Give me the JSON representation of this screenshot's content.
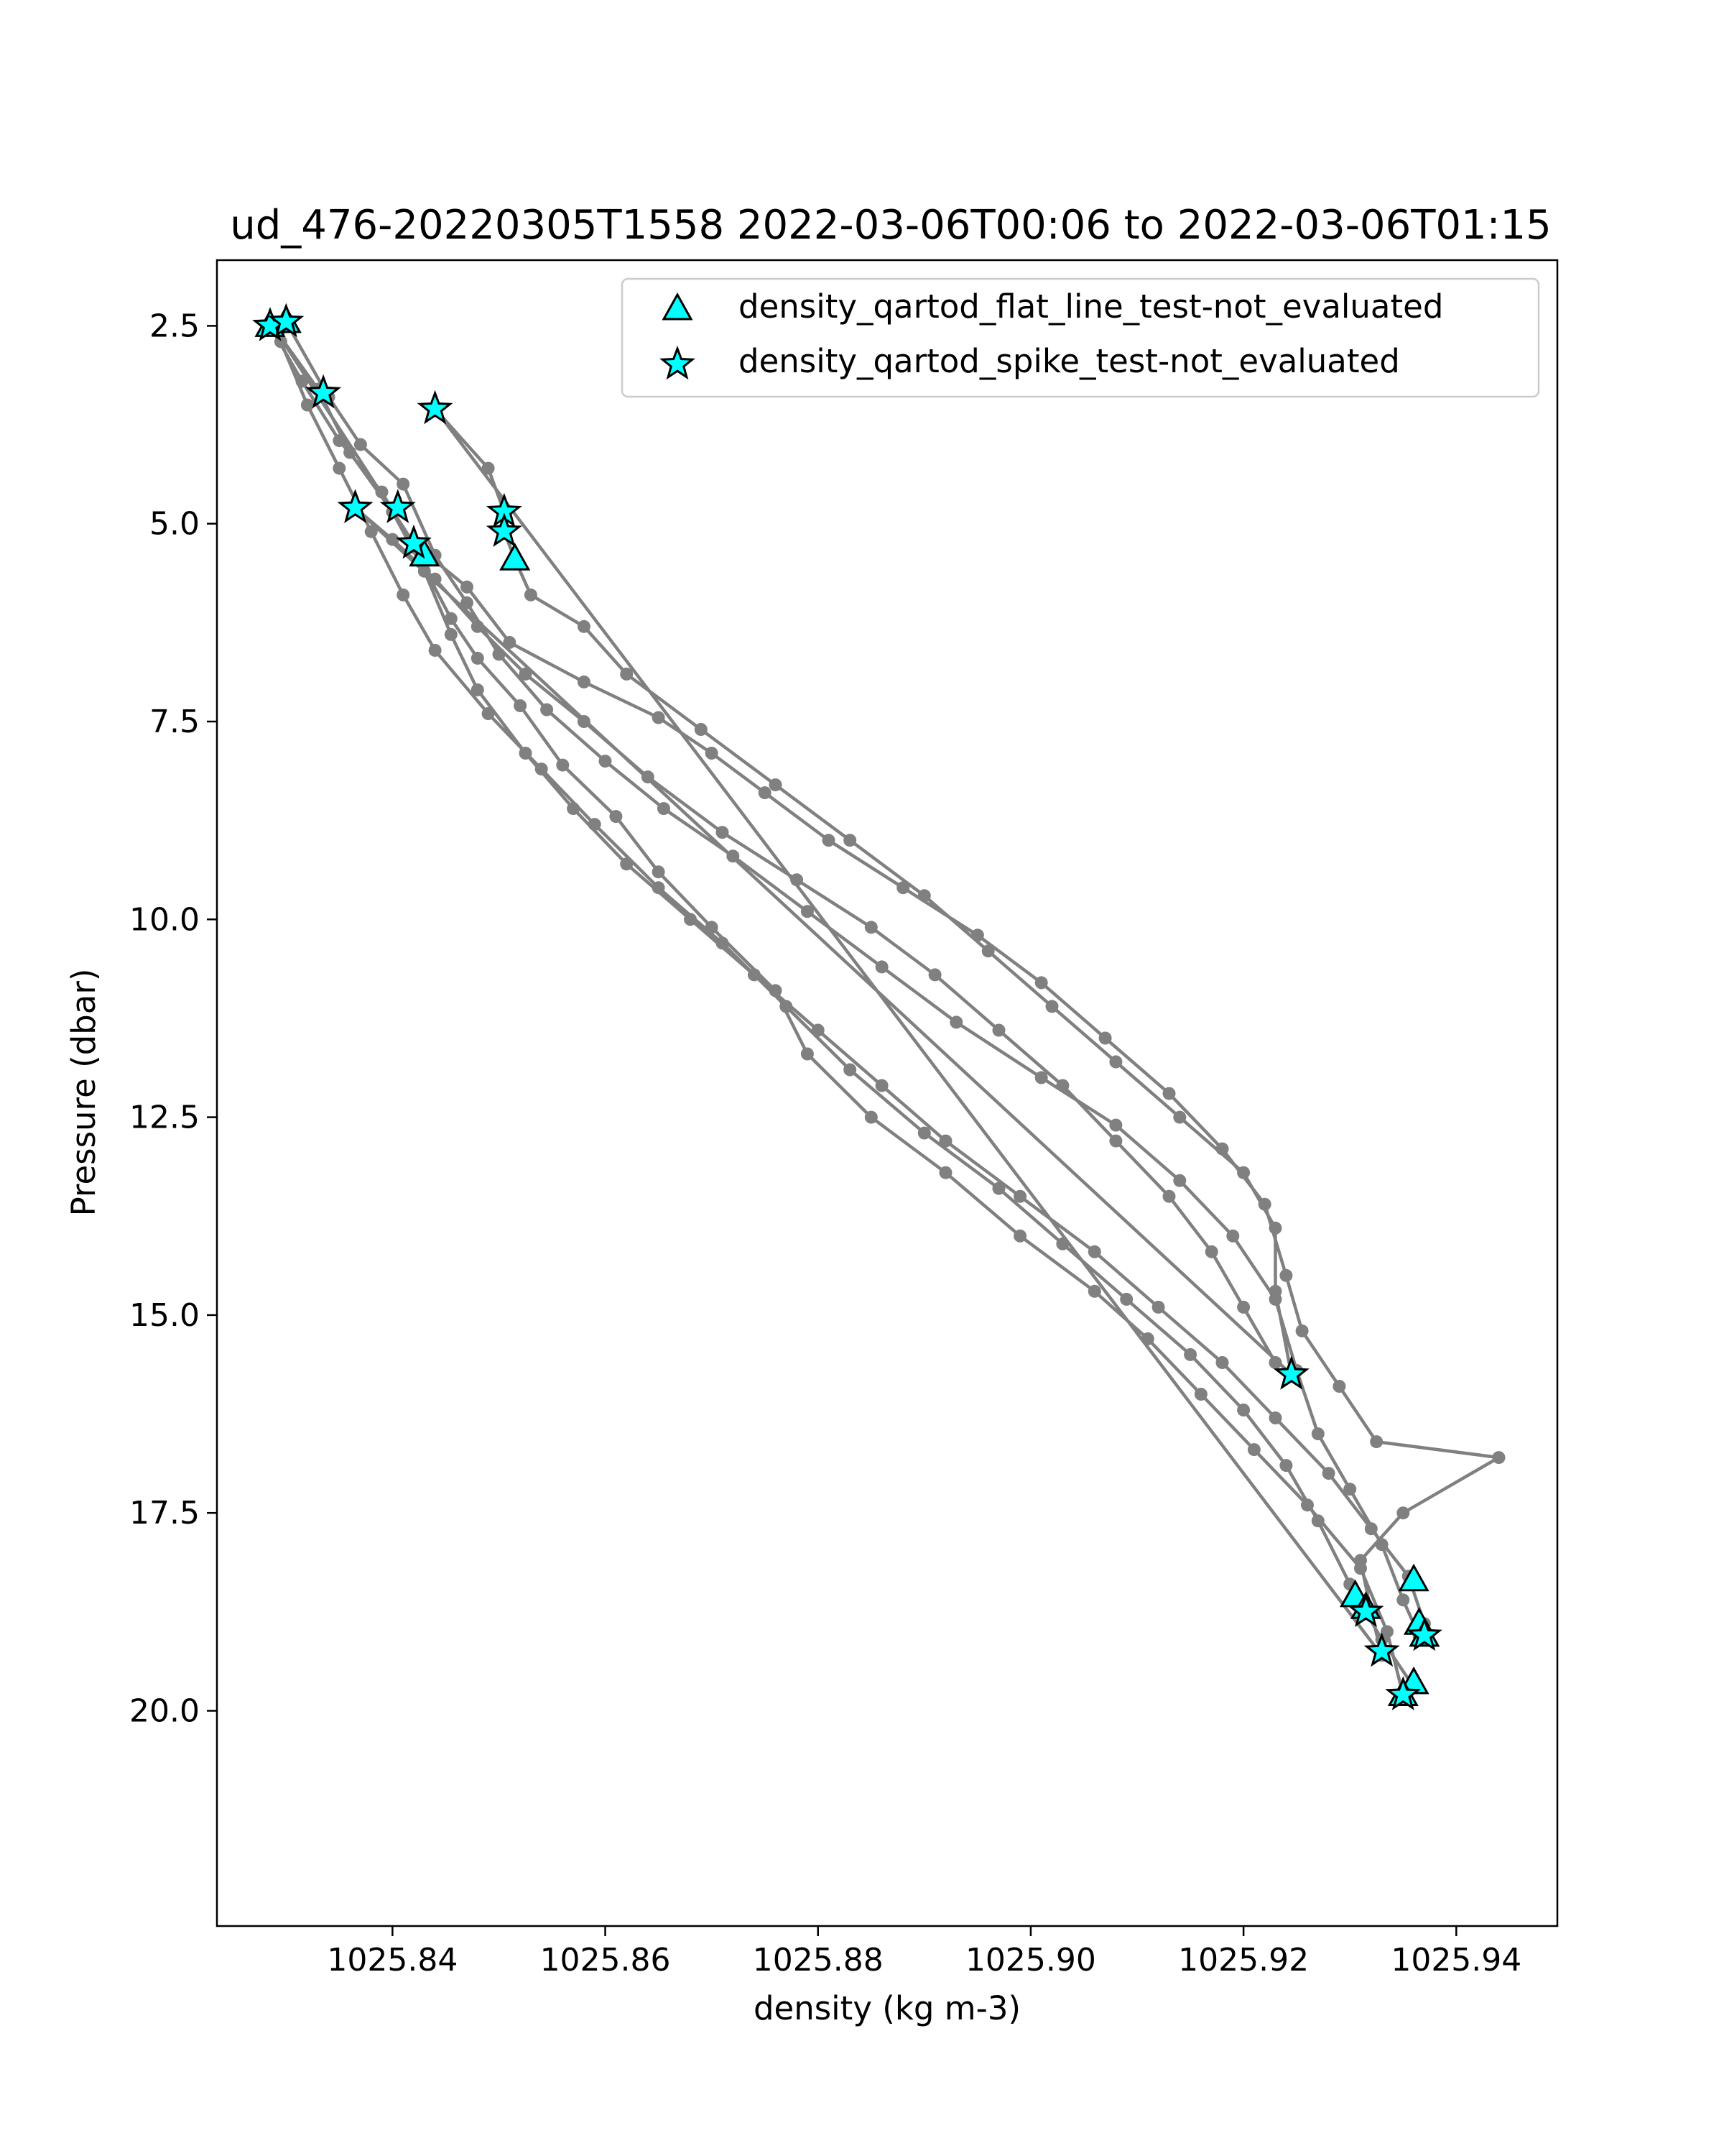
{
  "chart_data": {
    "type": "scatter",
    "title": "ud_476-20220305T1558 2022-03-06T00:06 to 2022-03-06T01:15",
    "xlabel": "density (kg m-3)",
    "ylabel": "Pressure (dbar)",
    "xlim": [
      1025.8235,
      1025.9495
    ],
    "ylim": [
      22.72,
      1.67
    ],
    "y_inverted": true,
    "x_ticks": [
      1025.84,
      1025.86,
      1025.88,
      1025.9,
      1025.92,
      1025.94
    ],
    "x_tick_labels": [
      "1025.84",
      "1025.86",
      "1025.88",
      "1025.90",
      "1025.92",
      "1025.94"
    ],
    "y_ticks": [
      2.5,
      5.0,
      7.5,
      10.0,
      12.5,
      15.0,
      17.5,
      20.0
    ],
    "y_tick_labels": [
      "2.5",
      "5.0",
      "7.5",
      "10.0",
      "12.5",
      "15.0",
      "17.5",
      "20.0"
    ],
    "grid": false,
    "legend_position": "top-right",
    "profile_series": {
      "color": "#808080",
      "points": [
        [
          1025.8285,
          2.5
        ],
        [
          1025.8315,
          3.2
        ],
        [
          1025.835,
          3.95
        ],
        [
          1025.839,
          4.6
        ],
        [
          1025.842,
          5.3
        ],
        [
          1025.8455,
          6.2
        ],
        [
          1025.848,
          6.7
        ],
        [
          1025.852,
          7.3
        ],
        [
          1025.856,
          8.05
        ],
        [
          1025.861,
          8.7
        ],
        [
          1025.865,
          9.4
        ],
        [
          1025.87,
          10.1
        ],
        [
          1025.876,
          10.9
        ],
        [
          1025.879,
          11.7
        ],
        [
          1025.885,
          12.5
        ],
        [
          1025.892,
          13.2
        ],
        [
          1025.899,
          14.0
        ],
        [
          1025.906,
          14.7
        ],
        [
          1025.911,
          15.3
        ],
        [
          1025.916,
          16.0
        ],
        [
          1025.921,
          16.7
        ],
        [
          1025.926,
          17.4
        ],
        [
          1025.931,
          18.2
        ],
        [
          1025.9335,
          19.0
        ],
        [
          1025.935,
          19.8
        ],
        [
          1025.936,
          19.7
        ],
        [
          1025.933,
          19.1
        ],
        [
          1025.93,
          18.4
        ],
        [
          1025.927,
          17.6
        ],
        [
          1025.924,
          16.9
        ],
        [
          1025.92,
          16.2
        ],
        [
          1025.915,
          15.5
        ],
        [
          1025.909,
          14.8
        ],
        [
          1025.903,
          14.1
        ],
        [
          1025.897,
          13.4
        ],
        [
          1025.89,
          12.7
        ],
        [
          1025.883,
          11.9
        ],
        [
          1025.877,
          11.1
        ],
        [
          1025.871,
          10.3
        ],
        [
          1025.865,
          9.6
        ],
        [
          1025.859,
          8.8
        ],
        [
          1025.854,
          8.1
        ],
        [
          1025.849,
          7.4
        ],
        [
          1025.844,
          6.6
        ],
        [
          1025.841,
          5.9
        ],
        [
          1025.838,
          5.1
        ],
        [
          1025.835,
          4.3
        ],
        [
          1025.832,
          3.5
        ],
        [
          1025.8295,
          2.7
        ],
        [
          1025.83,
          2.45
        ],
        [
          1025.834,
          3.4
        ],
        [
          1025.837,
          4.0
        ],
        [
          1025.841,
          4.5
        ],
        [
          1025.844,
          5.4
        ],
        [
          1025.847,
          6.0
        ],
        [
          1025.85,
          6.65
        ],
        [
          1025.8545,
          7.35
        ],
        [
          1025.86,
          8.0
        ],
        [
          1025.8655,
          8.6
        ],
        [
          1025.872,
          9.2
        ],
        [
          1025.879,
          9.9
        ],
        [
          1025.886,
          10.6
        ],
        [
          1025.893,
          11.3
        ],
        [
          1025.901,
          12.0
        ],
        [
          1025.908,
          12.6
        ],
        [
          1025.914,
          13.3
        ],
        [
          1025.919,
          14.0
        ],
        [
          1025.923,
          14.8
        ],
        [
          1025.925,
          15.7
        ],
        [
          1025.927,
          16.5
        ],
        [
          1025.93,
          17.2
        ],
        [
          1025.933,
          17.9
        ],
        [
          1025.935,
          18.6
        ],
        [
          1025.9365,
          19.05
        ],
        [
          1025.937,
          18.9
        ],
        [
          1025.9355,
          18.3
        ],
        [
          1025.932,
          17.7
        ],
        [
          1025.928,
          17.0
        ],
        [
          1025.923,
          16.3
        ],
        [
          1025.918,
          15.6
        ],
        [
          1025.912,
          14.9
        ],
        [
          1025.906,
          14.2
        ],
        [
          1025.899,
          13.5
        ],
        [
          1025.892,
          12.8
        ],
        [
          1025.886,
          12.1
        ],
        [
          1025.88,
          11.4
        ],
        [
          1025.874,
          10.7
        ],
        [
          1025.868,
          10.0
        ],
        [
          1025.862,
          9.3
        ],
        [
          1025.857,
          8.6
        ],
        [
          1025.8525,
          7.9
        ],
        [
          1025.848,
          7.1
        ],
        [
          1025.8455,
          6.4
        ],
        [
          1025.843,
          5.6
        ],
        [
          1025.84,
          4.85
        ],
        [
          1025.836,
          4.1
        ],
        [
          1025.833,
          3.3
        ],
        [
          1025.829,
          2.55
        ],
        [
          1025.842,
          5.25
        ],
        [
          1025.847,
          5.8
        ],
        [
          1025.851,
          6.5
        ],
        [
          1025.858,
          7.0
        ],
        [
          1025.865,
          7.45
        ],
        [
          1025.87,
          7.9
        ],
        [
          1025.875,
          8.4
        ],
        [
          1025.881,
          9.0
        ],
        [
          1025.888,
          9.6
        ],
        [
          1025.895,
          10.2
        ],
        [
          1025.901,
          10.8
        ],
        [
          1025.907,
          11.5
        ],
        [
          1025.913,
          12.2
        ],
        [
          1025.918,
          12.9
        ],
        [
          1025.922,
          13.6
        ],
        [
          1025.924,
          14.5
        ],
        [
          1025.9255,
          15.2
        ],
        [
          1025.929,
          15.9
        ],
        [
          1025.9325,
          16.6
        ],
        [
          1025.944,
          16.8
        ],
        [
          1025.935,
          17.5
        ],
        [
          1025.931,
          18.1
        ],
        [
          1025.932,
          18.75
        ],
        [
          1025.933,
          19.3
        ],
        [
          1025.844,
          3.55
        ],
        [
          1025.849,
          4.3
        ],
        [
          1025.8505,
          4.85
        ],
        [
          1025.8505,
          5.1
        ],
        [
          1025.8515,
          5.45
        ],
        [
          1025.853,
          5.9
        ],
        [
          1025.858,
          6.3
        ],
        [
          1025.862,
          6.9
        ],
        [
          1025.869,
          7.6
        ],
        [
          1025.876,
          8.3
        ],
        [
          1025.883,
          9.0
        ],
        [
          1025.89,
          9.7
        ],
        [
          1025.896,
          10.4
        ],
        [
          1025.902,
          11.1
        ],
        [
          1025.908,
          11.8
        ],
        [
          1025.914,
          12.5
        ],
        [
          1025.92,
          13.2
        ],
        [
          1025.923,
          13.9
        ],
        [
          1025.923,
          14.7
        ],
        [
          1025.9245,
          15.75
        ],
        [
          1025.8365,
          4.8
        ],
        [
          1025.84,
          5.2
        ],
        [
          1025.844,
          5.7
        ],
        [
          1025.848,
          6.3
        ],
        [
          1025.8525,
          6.9
        ],
        [
          1025.858,
          7.5
        ],
        [
          1025.864,
          8.2
        ],
        [
          1025.871,
          8.9
        ],
        [
          1025.878,
          9.5
        ],
        [
          1025.885,
          10.1
        ],
        [
          1025.891,
          10.7
        ],
        [
          1025.897,
          11.4
        ],
        [
          1025.903,
          12.1
        ],
        [
          1025.908,
          12.8
        ],
        [
          1025.913,
          13.5
        ],
        [
          1025.917,
          14.2
        ],
        [
          1025.92,
          14.9
        ],
        [
          1025.923,
          15.6
        ]
      ]
    },
    "series": [
      {
        "name": "density_qartod_flat_line_test-not_evaluated",
        "marker": "triangle",
        "color": "#00ffff",
        "points": [
          [
            1025.8285,
            2.5
          ],
          [
            1025.83,
            2.45
          ],
          [
            1025.843,
            5.4
          ],
          [
            1025.8515,
            5.45
          ],
          [
            1025.9305,
            18.55
          ],
          [
            1025.9315,
            18.7
          ],
          [
            1025.936,
            18.35
          ],
          [
            1025.9365,
            18.9
          ],
          [
            1025.937,
            19.05
          ],
          [
            1025.936,
            19.65
          ],
          [
            1025.935,
            19.8
          ]
        ]
      },
      {
        "name": "density_qartod_spike_test-not_evaluated",
        "marker": "star",
        "color": "#00ffff",
        "points": [
          [
            1025.8285,
            2.5
          ],
          [
            1025.83,
            2.45
          ],
          [
            1025.8335,
            3.35
          ],
          [
            1025.844,
            3.55
          ],
          [
            1025.8365,
            4.8
          ],
          [
            1025.8405,
            4.8
          ],
          [
            1025.8505,
            4.85
          ],
          [
            1025.8505,
            5.1
          ],
          [
            1025.842,
            5.25
          ],
          [
            1025.9245,
            15.75
          ],
          [
            1025.9315,
            18.75
          ],
          [
            1025.933,
            19.25
          ],
          [
            1025.937,
            19.05
          ],
          [
            1025.935,
            19.8
          ]
        ]
      }
    ]
  }
}
